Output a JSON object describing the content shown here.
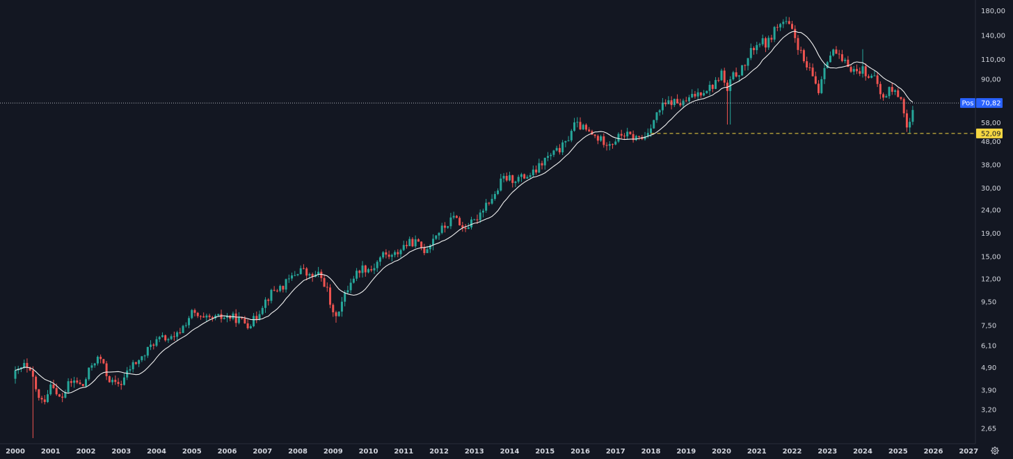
{
  "colors": {
    "background": "#131722",
    "axis_text": "#d1d4dc",
    "axis_line": "#2a2e39",
    "candle_up": "#26a69a",
    "candle_down": "#ef5350",
    "moving_average": "#f0f0f0",
    "price_line": "#b2b5be",
    "price_badge": "#2962ff",
    "support_line": "#f5d742",
    "support_badge": "#f5d742"
  },
  "icons": {
    "settings": "gear-icon"
  },
  "chart_data": {
    "type": "candlestick",
    "title": "",
    "y_scale": "log",
    "ylim": [
      2.3,
      195
    ],
    "xlim": [
      2000.0,
      2027.25
    ],
    "grid": false,
    "legend": "none",
    "y_ticks": [
      {
        "value": 180,
        "label": "180,00"
      },
      {
        "value": 140,
        "label": "140,00"
      },
      {
        "value": 110,
        "label": "110,00"
      },
      {
        "value": 90,
        "label": "90,00"
      },
      {
        "value": 58,
        "label": "58,00"
      },
      {
        "value": 48,
        "label": "48,00"
      },
      {
        "value": 38,
        "label": "38,00"
      },
      {
        "value": 30,
        "label": "30,00"
      },
      {
        "value": 24,
        "label": "24,00"
      },
      {
        "value": 19,
        "label": "19,00"
      },
      {
        "value": 15,
        "label": "15,00"
      },
      {
        "value": 12,
        "label": "12,00"
      },
      {
        "value": 9.5,
        "label": "9,50"
      },
      {
        "value": 7.5,
        "label": "7,50"
      },
      {
        "value": 6.1,
        "label": "6,10"
      },
      {
        "value": 4.9,
        "label": "4,90"
      },
      {
        "value": 3.9,
        "label": "3,90"
      },
      {
        "value": 3.2,
        "label": "3,20"
      },
      {
        "value": 2.65,
        "label": "2,65"
      }
    ],
    "x_ticks": [
      "2000",
      "2001",
      "2002",
      "2003",
      "2004",
      "2005",
      "2006",
      "2007",
      "2008",
      "2009",
      "2010",
      "2011",
      "2012",
      "2013",
      "2014",
      "2015",
      "2016",
      "2017",
      "2018",
      "2019",
      "2020",
      "2021",
      "2022",
      "2023",
      "2024",
      "2025",
      "2026",
      "2027"
    ],
    "price_line": {
      "value": 70.82,
      "label": "70,82",
      "tag": "Pos"
    },
    "support_line": {
      "value": 52.09,
      "label": "52,09",
      "start": 2018.0
    },
    "close_anchors": [
      [
        2000.0,
        4.6
      ],
      [
        2000.25,
        5.0
      ],
      [
        2000.5,
        4.4
      ],
      [
        2000.7,
        3.4
      ],
      [
        2000.85,
        3.6
      ],
      [
        2001.05,
        4.4
      ],
      [
        2001.15,
        3.7
      ],
      [
        2001.3,
        3.55
      ],
      [
        2001.5,
        4.1
      ],
      [
        2001.7,
        4.3
      ],
      [
        2001.9,
        4.0
      ],
      [
        2002.2,
        5.2
      ],
      [
        2002.4,
        5.4
      ],
      [
        2002.6,
        4.5
      ],
      [
        2002.8,
        4.1
      ],
      [
        2003.0,
        4.2
      ],
      [
        2003.3,
        5.0
      ],
      [
        2003.6,
        5.4
      ],
      [
        2003.9,
        6.3
      ],
      [
        2004.2,
        6.6
      ],
      [
        2004.5,
        6.5
      ],
      [
        2004.8,
        7.6
      ],
      [
        2005.0,
        8.5
      ],
      [
        2005.3,
        7.9
      ],
      [
        2005.6,
        8.0
      ],
      [
        2006.0,
        8.2
      ],
      [
        2006.3,
        8.0
      ],
      [
        2006.6,
        7.6
      ],
      [
        2006.8,
        8.0
      ],
      [
        2007.0,
        9.3
      ],
      [
        2007.3,
        10.6
      ],
      [
        2007.6,
        11.2
      ],
      [
        2007.9,
        12.5
      ],
      [
        2008.1,
        13.4
      ],
      [
        2008.3,
        12.2
      ],
      [
        2008.6,
        12.5
      ],
      [
        2008.8,
        11.2
      ],
      [
        2009.0,
        8.2
      ],
      [
        2009.2,
        9.0
      ],
      [
        2009.5,
        11.8
      ],
      [
        2009.8,
        13.5
      ],
      [
        2010.1,
        13.2
      ],
      [
        2010.4,
        15.4
      ],
      [
        2010.7,
        15.0
      ],
      [
        2011.0,
        16.8
      ],
      [
        2011.3,
        17.5
      ],
      [
        2011.6,
        16.0
      ],
      [
        2011.9,
        18.8
      ],
      [
        2012.2,
        20.5
      ],
      [
        2012.5,
        23.0
      ],
      [
        2012.6,
        20.0
      ],
      [
        2012.8,
        20.5
      ],
      [
        2013.0,
        21.3
      ],
      [
        2013.3,
        25.5
      ],
      [
        2013.6,
        28.0
      ],
      [
        2013.8,
        33.2
      ],
      [
        2014.1,
        32.8
      ],
      [
        2014.4,
        33.5
      ],
      [
        2014.7,
        35.0
      ],
      [
        2015.0,
        40.0
      ],
      [
        2015.3,
        43.0
      ],
      [
        2015.6,
        47.0
      ],
      [
        2015.8,
        57.0
      ],
      [
        2016.0,
        56.0
      ],
      [
        2016.3,
        51.5
      ],
      [
        2016.6,
        48.5
      ],
      [
        2016.9,
        47.5
      ],
      [
        2017.2,
        52.0
      ],
      [
        2017.5,
        50.0
      ],
      [
        2017.8,
        49.5
      ],
      [
        2018.0,
        57.0
      ],
      [
        2018.3,
        68.0
      ],
      [
        2018.6,
        72.0
      ],
      [
        2018.9,
        70.0
      ],
      [
        2019.2,
        76.0
      ],
      [
        2019.5,
        81.0
      ],
      [
        2019.8,
        85.0
      ],
      [
        2020.0,
        97.0
      ],
      [
        2020.15,
        78.0
      ],
      [
        2020.3,
        92.0
      ],
      [
        2020.6,
        100.0
      ],
      [
        2020.9,
        124.0
      ],
      [
        2021.1,
        132.0
      ],
      [
        2021.3,
        128.0
      ],
      [
        2021.5,
        150.0
      ],
      [
        2021.75,
        160.0
      ],
      [
        2021.9,
        155.0
      ],
      [
        2022.1,
        135.0
      ],
      [
        2022.35,
        105.0
      ],
      [
        2022.6,
        92.0
      ],
      [
        2022.75,
        80.0
      ],
      [
        2022.95,
        110.0
      ],
      [
        2023.2,
        120.0
      ],
      [
        2023.4,
        107.0
      ],
      [
        2023.6,
        104.0
      ],
      [
        2023.8,
        97.0
      ],
      [
        2024.0,
        100.0
      ],
      [
        2024.2,
        93.0
      ],
      [
        2024.4,
        88.0
      ],
      [
        2024.55,
        72.0
      ],
      [
        2024.75,
        82.0
      ],
      [
        2024.95,
        78.0
      ],
      [
        2025.1,
        75.0
      ],
      [
        2025.25,
        55.0
      ],
      [
        2025.4,
        60.0
      ],
      [
        2025.45,
        70.82
      ]
    ]
  }
}
